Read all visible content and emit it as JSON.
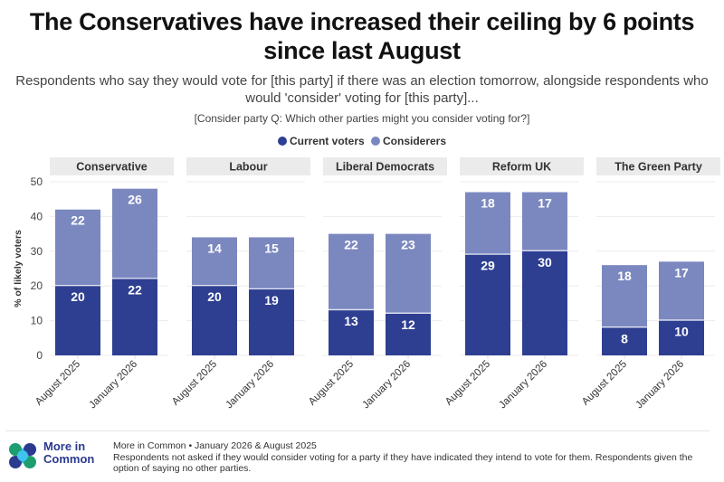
{
  "title": "The Conservatives have increased their ceiling by 6 points since last August",
  "subtitle": "Respondents who say they would vote for [this party] if there was an election tomorrow, alongside respondents who would 'consider' voting for [this party]...",
  "question": "[Consider party Q: Which other parties might you consider voting for?]",
  "legend": [
    {
      "label": "Current voters",
      "color": "#2e3f91"
    },
    {
      "label": "Considerers",
      "color": "#7b88bf"
    }
  ],
  "footer": {
    "logo_text_line1": "More in",
    "logo_text_line2": "Common",
    "source_line": "More in Common • January 2026 & August 2025",
    "note": "Respondents not asked if they would consider voting for a party if they have indicated they intend to vote for them. Respondents given the option of saying no other parties."
  },
  "chart_data": {
    "type": "bar",
    "stacked": true,
    "faceted": true,
    "title": "The Conservatives have increased their ceiling by 6 points since last August",
    "ylabel": "% of likely voters",
    "xlabel": "",
    "ylim": [
      0,
      50
    ],
    "yticks": [
      0,
      10,
      20,
      30,
      40,
      50
    ],
    "grid": true,
    "legend_position": "top-center",
    "categories": [
      "August 2025",
      "January 2026"
    ],
    "panels": [
      {
        "name": "Conservative",
        "series": [
          {
            "name": "Current voters",
            "values": [
              20,
              22
            ]
          },
          {
            "name": "Considerers",
            "values": [
              22,
              26
            ]
          }
        ],
        "totals": [
          42,
          48
        ]
      },
      {
        "name": "Labour",
        "series": [
          {
            "name": "Current voters",
            "values": [
              20,
              19
            ]
          },
          {
            "name": "Considerers",
            "values": [
              14,
              15
            ]
          }
        ],
        "totals": [
          34,
          34
        ]
      },
      {
        "name": "Liberal Democrats",
        "series": [
          {
            "name": "Current voters",
            "values": [
              13,
              12
            ]
          },
          {
            "name": "Considerers",
            "values": [
              22,
              23
            ]
          }
        ],
        "totals": [
          35,
          35
        ]
      },
      {
        "name": "Reform UK",
        "series": [
          {
            "name": "Current voters",
            "values": [
              29,
              30
            ]
          },
          {
            "name": "Considerers",
            "values": [
              18,
              17
            ]
          }
        ],
        "totals": [
          47,
          47
        ]
      },
      {
        "name": "The Green Party",
        "series": [
          {
            "name": "Current voters",
            "values": [
              8,
              10
            ]
          },
          {
            "name": "Considerers",
            "values": [
              18,
              17
            ]
          }
        ],
        "totals": [
          26,
          27
        ]
      }
    ],
    "colors": {
      "current": "#2e3f91",
      "considerers": "#7b88bf"
    }
  }
}
